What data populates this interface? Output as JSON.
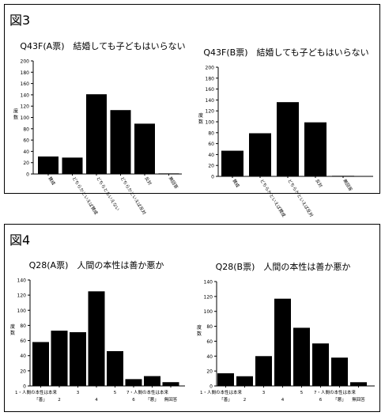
{
  "figures": [
    {
      "label": "図3"
    },
    {
      "label": "図4"
    }
  ],
  "chart_data": [
    {
      "type": "bar",
      "title": "Q43F(A票)　結婚しても子どもはいらない",
      "ylabel": "度数",
      "ylim": [
        0,
        200
      ],
      "yticks": [
        0,
        20,
        40,
        60,
        80,
        100,
        120,
        140,
        160,
        180,
        200
      ],
      "categories": [
        "賛成",
        "どちらかといえば賛成",
        "どちらともいえない",
        "どちらかといえば反対",
        "反対",
        "無回答"
      ],
      "values": [
        31,
        29,
        141,
        113,
        89,
        1
      ],
      "bar_color": "#000000"
    },
    {
      "type": "bar",
      "title": "Q43F(B票)　結婚しても子どもはいらない",
      "ylabel": "度数",
      "ylim": [
        0,
        200
      ],
      "yticks": [
        0,
        20,
        40,
        60,
        80,
        100,
        120,
        140,
        160,
        180,
        200
      ],
      "categories": [
        "賛成",
        "どちらかといえば賛成",
        "どちらかといえば反対",
        "反対",
        "無回答"
      ],
      "values": [
        47,
        79,
        136,
        99,
        1
      ],
      "bar_color": "#000000"
    },
    {
      "type": "bar",
      "title": "Q28(A票)　人間の本性は善か悪か",
      "ylabel": "度数",
      "ylim": [
        0,
        140
      ],
      "yticks": [
        0,
        20,
        40,
        60,
        80,
        100,
        120,
        140
      ],
      "categories": [
        "1・人間の本性は本来「善」",
        "2",
        "3",
        "4",
        "5",
        "6",
        "7・人間の本性は本来「悪」",
        "無回答"
      ],
      "tick_rows": [
        [
          "1・人間の本性は本来",
          "「善」"
        ],
        [
          "",
          "2"
        ],
        [
          "3",
          ""
        ],
        [
          "",
          "4"
        ],
        [
          "5",
          ""
        ],
        [
          "",
          "6"
        ],
        [
          "7・人間の本性は本来",
          "「悪」"
        ],
        [
          "",
          "無回答"
        ]
      ],
      "values": [
        58,
        73,
        71,
        125,
        46,
        9,
        13,
        5
      ],
      "bar_color": "#000000"
    },
    {
      "type": "bar",
      "title": "Q28(B票)　人間の本性は善か悪か",
      "ylabel": "度数",
      "ylim": [
        0,
        140
      ],
      "yticks": [
        0,
        20,
        40,
        60,
        80,
        100,
        120,
        140
      ],
      "categories": [
        "1・人間の本性は本来「善」",
        "2",
        "3",
        "4",
        "5",
        "6",
        "7・人間の本性は本来「悪」",
        "無回答"
      ],
      "tick_rows": [
        [
          "1・人間の本性は本来",
          "「善」"
        ],
        [
          "",
          "2"
        ],
        [
          "3",
          ""
        ],
        [
          "",
          "4"
        ],
        [
          "5",
          ""
        ],
        [
          "",
          "6"
        ],
        [
          "7・人間の本性は本来",
          "「悪」"
        ],
        [
          "",
          "無回答"
        ]
      ],
      "values": [
        17,
        13,
        40,
        117,
        78,
        57,
        38,
        5
      ],
      "bar_color": "#000000"
    }
  ]
}
